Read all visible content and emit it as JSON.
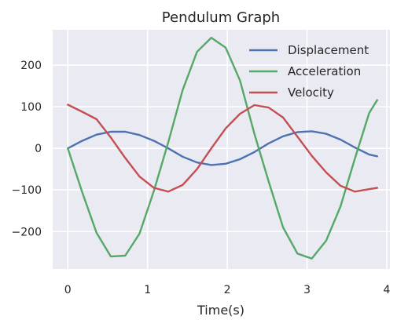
{
  "chart_data": {
    "type": "line",
    "title": "Pendulum Graph",
    "xlabel": "Time(s)",
    "ylabel": "",
    "xlim": [
      -0.19,
      4.04
    ],
    "ylim": [
      -290,
      285
    ],
    "xticks": [
      0,
      1,
      2,
      3,
      4
    ],
    "yticks": [
      -200,
      -100,
      0,
      100,
      200
    ],
    "grid": true,
    "legend": "top-right",
    "x": [
      0,
      0.18,
      0.36,
      0.54,
      0.72,
      0.9,
      1.08,
      1.26,
      1.44,
      1.62,
      1.8,
      1.98,
      2.16,
      2.34,
      2.52,
      2.7,
      2.88,
      3.06,
      3.24,
      3.42,
      3.6,
      3.78,
      3.88
    ],
    "series": [
      {
        "name": "Displacement",
        "color": "#4c72b0",
        "values": [
          0,
          18,
          33,
          40,
          40,
          32,
          18,
          0,
          -20,
          -34,
          -40,
          -37,
          -26,
          -9,
          12,
          29,
          39,
          41,
          35,
          21,
          2,
          -15,
          -19
        ]
      },
      {
        "name": "Acceleration",
        "color": "#55a868",
        "values": [
          0,
          -105,
          -203,
          -260,
          -258,
          -205,
          -102,
          15,
          140,
          232,
          266,
          242,
          163,
          35,
          -80,
          -190,
          -253,
          -265,
          -222,
          -140,
          -25,
          85,
          116
        ]
      },
      {
        "name": "Velocity",
        "color": "#c44e52",
        "values": [
          105,
          88,
          70,
          26,
          -23,
          -68,
          -95,
          -104,
          -88,
          -50,
          0,
          48,
          83,
          104,
          98,
          74,
          28,
          -18,
          -58,
          -90,
          -104,
          -98,
          -95
        ]
      }
    ]
  }
}
